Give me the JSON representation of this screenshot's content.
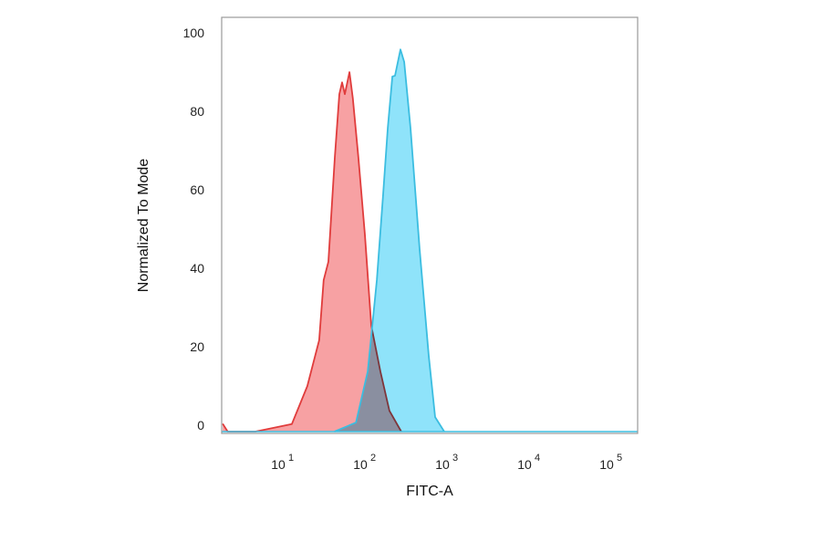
{
  "chart_data": {
    "type": "area",
    "title": "",
    "xlabel": "FITC-A",
    "ylabel": "Normalized To Mode",
    "x_scale": "log",
    "xlim": [
      2,
      230000
    ],
    "ylim": [
      0,
      105
    ],
    "x_ticks": [
      {
        "base": "10",
        "exp": "1",
        "value": 10
      },
      {
        "base": "10",
        "exp": "2",
        "value": 100
      },
      {
        "base": "10",
        "exp": "3",
        "value": 1000
      },
      {
        "base": "10",
        "exp": "4",
        "value": 10000
      },
      {
        "base": "10",
        "exp": "5",
        "value": 100000
      }
    ],
    "y_ticks": [
      0,
      20,
      40,
      60,
      80,
      100
    ],
    "grid": false,
    "legend": "none",
    "series": [
      {
        "color_fill": "#f7a1a3",
        "color_line": "#e03c3c",
        "x": [
          2,
          2.3,
          5,
          13.9,
          21.5,
          30,
          34,
          38.8,
          46.4,
          52.7,
          57,
          61.5,
          70,
          77,
          90,
          108,
          129,
          167,
          215,
          300
        ],
        "y": [
          2,
          0,
          0,
          1.9,
          11.6,
          23.3,
          38.6,
          43.3,
          69.8,
          86,
          89,
          86,
          91.6,
          84.9,
          69.8,
          50.2,
          27,
          15.3,
          5.3,
          0
        ]
      },
      {
        "color_fill": "#8fe3fa",
        "color_line": "#3bbde0",
        "x": [
          46,
          84,
          117,
          151,
          180,
          205,
          233,
          251,
          293,
          325,
          388,
          501,
          647,
          774,
          1000
        ],
        "y": [
          0,
          2.3,
          15.3,
          38.6,
          60.5,
          77.4,
          90.5,
          90.7,
          97.4,
          94.2,
          77.4,
          46.5,
          19.3,
          3.7,
          0
        ]
      }
    ]
  }
}
